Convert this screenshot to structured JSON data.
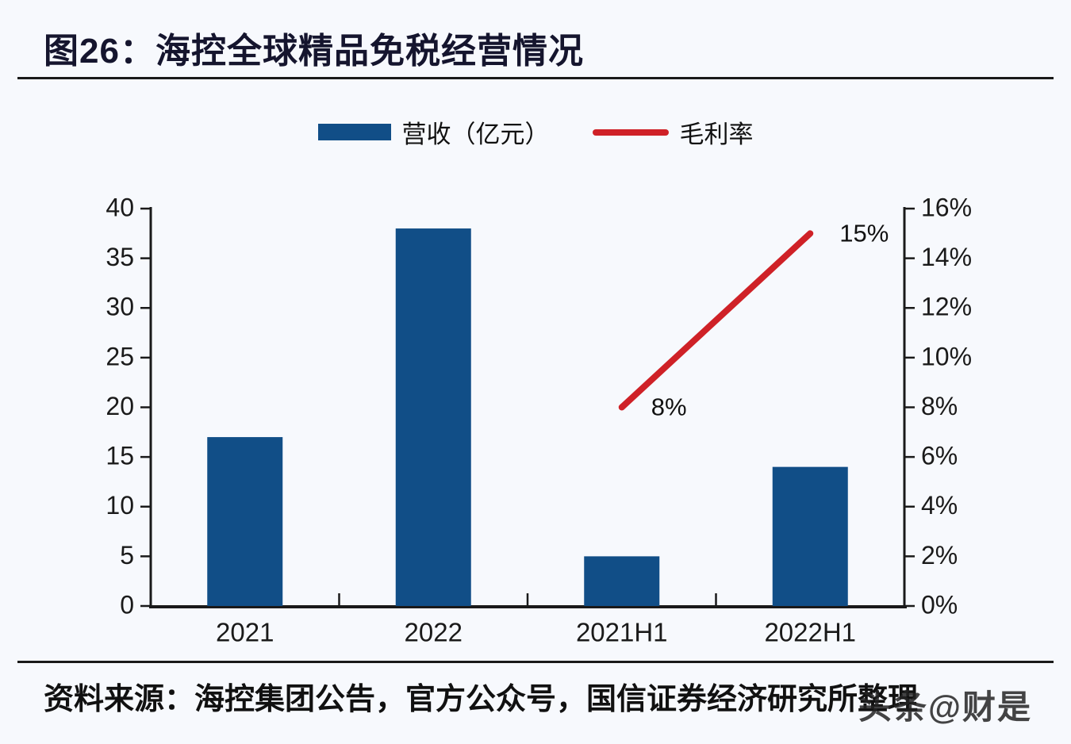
{
  "page": {
    "title": "图26：海控全球精品免税经营情况",
    "source_text": "资料来源：海控集团公告，官方公众号，国信证券经济研究所整理",
    "watermark": "头条@财是"
  },
  "colors": {
    "bar": "#114e87",
    "line": "#cf2127",
    "axis": "#1a1a1a",
    "text": "#111111",
    "title_text": "#15152e",
    "background": "#f7f9fd"
  },
  "legend": [
    {
      "type": "bar",
      "label": "营收（亿元）"
    },
    {
      "type": "line",
      "label": "毛利率"
    }
  ],
  "chart_data": {
    "type": "bar+line",
    "title": "海控全球精品免税经营情况",
    "categories": [
      "2021",
      "2022",
      "2021H1",
      "2022H1"
    ],
    "series": [
      {
        "name": "营收（亿元）",
        "type": "bar",
        "axis": "left",
        "values": [
          17,
          38,
          5,
          14
        ]
      },
      {
        "name": "毛利率",
        "type": "line",
        "axis": "right",
        "values": [
          null,
          null,
          8,
          15
        ],
        "point_labels": [
          null,
          null,
          "8%",
          "15%"
        ]
      }
    ],
    "left_axis": {
      "min": 0,
      "max": 40,
      "step": 5,
      "ticks": [
        "0",
        "5",
        "10",
        "15",
        "20",
        "25",
        "30",
        "35",
        "40"
      ]
    },
    "right_axis": {
      "min": 0,
      "max": 16,
      "step": 2,
      "suffix": "%",
      "ticks": [
        "0%",
        "2%",
        "4%",
        "6%",
        "8%",
        "10%",
        "12%",
        "14%",
        "16%"
      ]
    },
    "grid": false,
    "legend_position": "top"
  }
}
